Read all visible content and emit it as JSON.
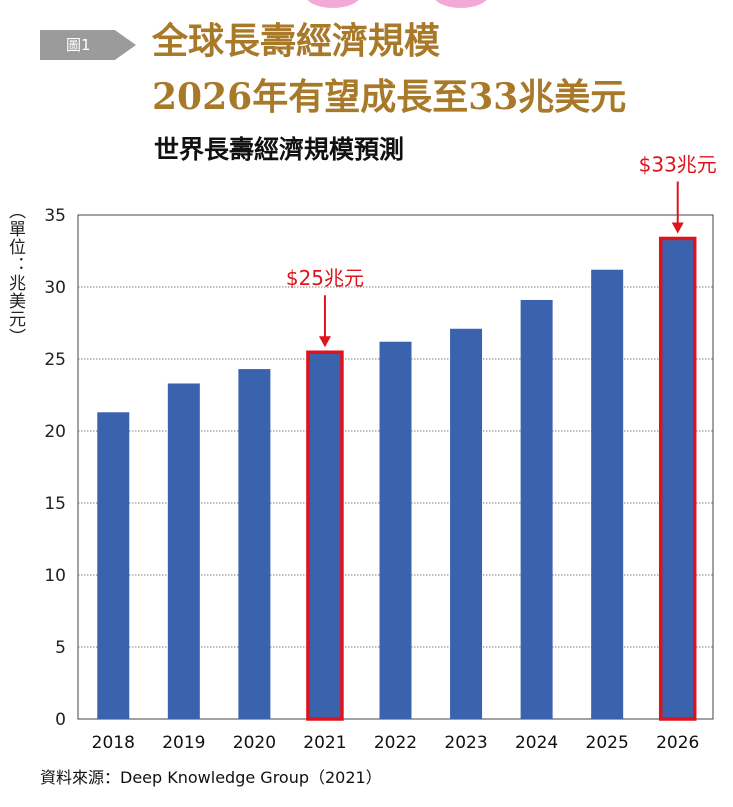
{
  "figure": {
    "label": "圖1",
    "headline_line1": "全球長壽經濟規模",
    "headline_line2": "2026年有望成長至33兆美元",
    "source": "資料來源：Deep Knowledge Group（2021）"
  },
  "colors": {
    "bar": "#3b62ad",
    "highlight": "#e0121c",
    "headline": "#a9792a",
    "label_tab": "#9b9b9b"
  },
  "chart_data": {
    "type": "bar",
    "title": "世界長壽經濟規模預測",
    "ylabel": "（單位：兆美元）",
    "xlabel": "",
    "categories": [
      "2018",
      "2019",
      "2020",
      "2021",
      "2022",
      "2023",
      "2024",
      "2025",
      "2026"
    ],
    "values": [
      21.3,
      23.3,
      24.3,
      25.4,
      26.2,
      27.1,
      29.1,
      31.2,
      33.3
    ],
    "ylim": [
      0,
      35
    ],
    "yticks": [
      0,
      5,
      10,
      15,
      20,
      25,
      30,
      35
    ],
    "grid": true,
    "annotations": [
      {
        "category": "2021",
        "text": "$25兆元"
      },
      {
        "category": "2026",
        "text": "$33兆元"
      }
    ]
  }
}
